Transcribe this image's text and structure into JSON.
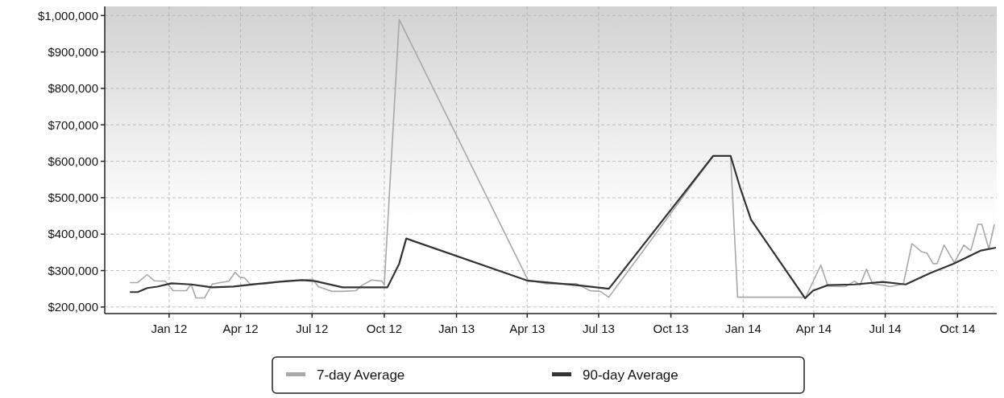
{
  "chart_data": {
    "type": "line",
    "xlim": [
      "2011-10-11",
      "2014-11-20"
    ],
    "ylim": [
      182000,
      1025000
    ],
    "xticks": [
      {
        "value": "2012-01-01",
        "label": "Jan 12"
      },
      {
        "value": "2012-04-01",
        "label": "Apr 12"
      },
      {
        "value": "2012-07-01",
        "label": "Jul 12"
      },
      {
        "value": "2012-10-01",
        "label": "Oct 12"
      },
      {
        "value": "2013-01-01",
        "label": "Jan 13"
      },
      {
        "value": "2013-04-01",
        "label": "Apr 13"
      },
      {
        "value": "2013-07-01",
        "label": "Jul 13"
      },
      {
        "value": "2013-10-01",
        "label": "Oct 13"
      },
      {
        "value": "2014-01-01",
        "label": "Jan 14"
      },
      {
        "value": "2014-04-01",
        "label": "Apr 14"
      },
      {
        "value": "2014-07-01",
        "label": "Jul 14"
      },
      {
        "value": "2014-10-01",
        "label": "Oct 14"
      }
    ],
    "yticks": [
      {
        "value": 200000,
        "label": "$200,000"
      },
      {
        "value": 300000,
        "label": "$300,000"
      },
      {
        "value": 400000,
        "label": "$400,000"
      },
      {
        "value": 500000,
        "label": "$500,000"
      },
      {
        "value": 600000,
        "label": "$600,000"
      },
      {
        "value": 700000,
        "label": "$700,000"
      },
      {
        "value": 800000,
        "label": "$800,000"
      },
      {
        "value": 900000,
        "label": "$900,000"
      },
      {
        "value": 1000000,
        "label": "$1,000,000"
      }
    ],
    "grid": true,
    "legend": "bottom",
    "line_style": "solid",
    "marker": "none",
    "series": [
      {
        "name": "7-day Average",
        "color": "#a8a8a8",
        "x": [
          "2011-11-12",
          "2011-11-22",
          "2011-12-04",
          "2011-12-13",
          "2011-12-27",
          "2012-01-06",
          "2012-01-23",
          "2012-01-29",
          "2012-02-04",
          "2012-02-15",
          "2012-02-25",
          "2012-03-06",
          "2012-03-17",
          "2012-03-25",
          "2012-03-31",
          "2012-04-06",
          "2012-04-13",
          "2012-05-04",
          "2012-05-25",
          "2012-06-18",
          "2012-07-02",
          "2012-07-09",
          "2012-07-26",
          "2012-08-08",
          "2012-08-26",
          "2012-09-03",
          "2012-09-15",
          "2012-09-28",
          "2012-10-01",
          "2012-10-20",
          "2013-04-02",
          "2013-04-24",
          "2013-06-03",
          "2013-06-20",
          "2013-07-03",
          "2013-07-14",
          "2013-11-24",
          "2013-12-16",
          "2013-12-25",
          "2014-03-20",
          "2014-03-21",
          "2014-04-10",
          "2014-04-19",
          "2014-05-11",
          "2014-05-23",
          "2014-05-30",
          "2014-06-07",
          "2014-06-15",
          "2014-06-28",
          "2014-07-07",
          "2014-07-24",
          "2014-08-04",
          "2014-08-16",
          "2014-08-23",
          "2014-08-31",
          "2014-09-05",
          "2014-09-14",
          "2014-09-27",
          "2014-10-09",
          "2014-10-18",
          "2014-10-27",
          "2014-11-01",
          "2014-11-10",
          "2014-11-17"
        ],
        "values": [
          267000,
          267000,
          289000,
          272000,
          271000,
          245000,
          245000,
          263000,
          225000,
          225000,
          263000,
          267000,
          271000,
          295000,
          282000,
          280000,
          263000,
          264000,
          271000,
          274000,
          276000,
          256000,
          243000,
          243000,
          245000,
          260000,
          274000,
          271000,
          260000,
          989000,
          274000,
          264000,
          264000,
          245000,
          243000,
          227000,
          615000,
          615000,
          227000,
          227000,
          224000,
          315000,
          257000,
          256000,
          271000,
          260000,
          304000,
          263000,
          260000,
          256000,
          263000,
          374000,
          352000,
          348000,
          319000,
          319000,
          370000,
          322000,
          370000,
          355000,
          427000,
          427000,
          359000,
          427000
        ]
      },
      {
        "name": "90-day Average",
        "color": "#333333",
        "x": [
          "2011-11-12",
          "2011-11-22",
          "2011-12-04",
          "2011-12-17",
          "2012-01-04",
          "2012-01-29",
          "2012-02-25",
          "2012-03-23",
          "2012-04-20",
          "2012-05-18",
          "2012-06-18",
          "2012-07-05",
          "2012-08-09",
          "2012-10-05",
          "2012-10-20",
          "2012-10-29",
          "2013-04-02",
          "2013-06-03",
          "2013-07-14",
          "2013-11-24",
          "2013-12-16",
          "2013-12-28",
          "2014-01-11",
          "2014-03-20",
          "2014-03-21",
          "2014-03-31",
          "2014-04-19",
          "2014-05-23",
          "2014-06-28",
          "2014-07-27",
          "2014-08-27",
          "2014-09-26",
          "2014-10-31",
          "2014-11-19"
        ],
        "values": [
          241000,
          241000,
          252000,
          256000,
          265000,
          262000,
          254000,
          256000,
          263000,
          269000,
          274000,
          271000,
          254000,
          254000,
          319000,
          388000,
          272000,
          260000,
          250000,
          615000,
          615000,
          529000,
          440000,
          227000,
          224000,
          245000,
          260000,
          262000,
          269000,
          262000,
          293000,
          319000,
          355000,
          363000
        ]
      }
    ]
  }
}
